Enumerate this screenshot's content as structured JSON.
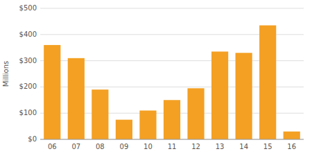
{
  "chart_data": {
    "type": "bar",
    "ylabel": "Millions",
    "categories": [
      "06",
      "07",
      "08",
      "09",
      "10",
      "11",
      "12",
      "13",
      "14",
      "15",
      "16"
    ],
    "values": [
      360,
      310,
      190,
      75,
      110,
      150,
      195,
      335,
      330,
      435,
      30
    ],
    "color": "#F4A023",
    "ylim": [
      0,
      500
    ],
    "yticks": [
      {
        "value": 0,
        "label": "$0"
      },
      {
        "value": 100,
        "label": "$100"
      },
      {
        "value": 200,
        "label": "$200"
      },
      {
        "value": 300,
        "label": "$300"
      },
      {
        "value": 400,
        "label": "$400"
      },
      {
        "value": 500,
        "label": "$500"
      }
    ],
    "grid": true
  }
}
